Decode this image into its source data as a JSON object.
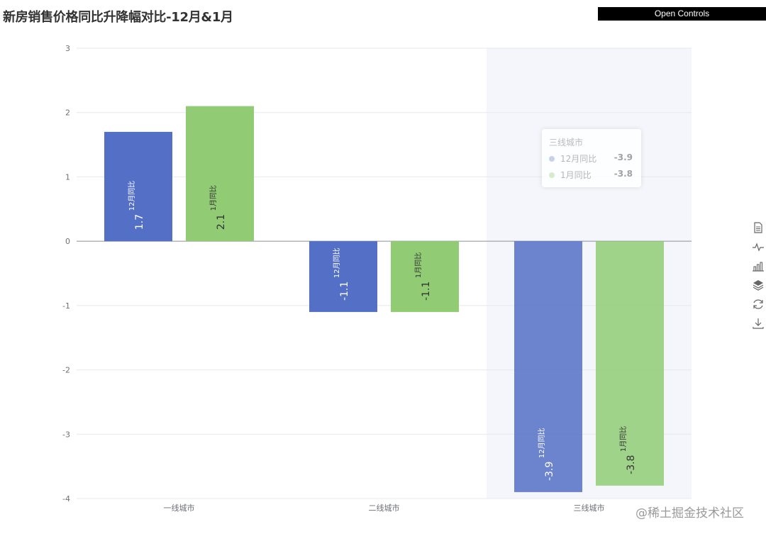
{
  "header": {
    "title": "新房销售价格同比升降幅对比-12月&1月",
    "open_controls_label": "Open Controls"
  },
  "toolbox": {
    "icons": [
      "data-view-icon",
      "line-chart-icon",
      "bar-chart-icon",
      "stack-icon",
      "restore-icon",
      "download-icon"
    ]
  },
  "watermark": "@稀土掘金技术社区",
  "tooltip": {
    "title": "三线城市",
    "rows": [
      {
        "name": "12月同比",
        "value": "-3.9",
        "color": "#5470c6"
      },
      {
        "name": "1月同比",
        "value": "-3.8",
        "color": "#91cc75"
      }
    ]
  },
  "chart_data": {
    "type": "bar",
    "title": "新房销售价格同比升降幅对比-12月&1月",
    "categories": [
      "一线城市",
      "二线城市",
      "三线城市"
    ],
    "series": [
      {
        "name": "12月同比",
        "values": [
          1.7,
          -1.1,
          -3.9
        ],
        "color": "#5470c6"
      },
      {
        "name": "1月同比",
        "values": [
          2.1,
          -1.1,
          -3.8
        ],
        "color": "#91cc75"
      }
    ],
    "ylim": [
      -4,
      3
    ],
    "yticks": [
      3,
      2,
      1,
      0,
      -1,
      -2,
      -3,
      -4
    ],
    "grid": true,
    "highlighted_category": "三线城市"
  }
}
